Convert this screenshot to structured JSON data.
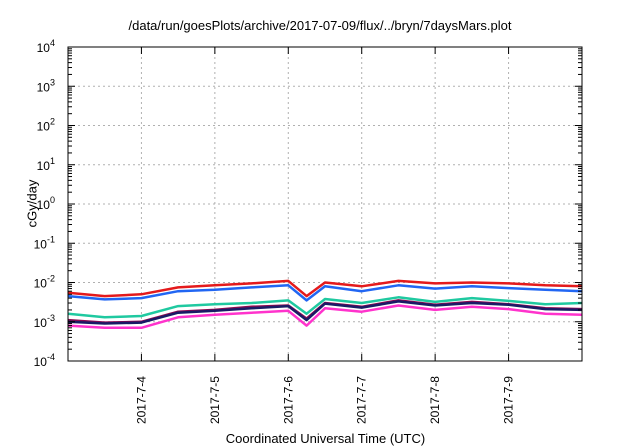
{
  "chart_data": {
    "type": "line",
    "title": "/data/run/goesPlots/archive/2017-07-09/flux/../bryn/7daysMars.plot",
    "xlabel": "Coordinated Universal Time (UTC)",
    "ylabel": "cGy/day",
    "y_scale": "log",
    "ylim": [
      0.0001,
      10000
    ],
    "y_tick_labels": [
      {
        "base": "10",
        "exp": "4"
      },
      {
        "base": "10",
        "exp": "3"
      },
      {
        "base": "10",
        "exp": "2"
      },
      {
        "base": "10",
        "exp": "1"
      },
      {
        "base": "10",
        "exp": "0"
      },
      {
        "base": "10",
        "exp": "-1"
      },
      {
        "base": "10",
        "exp": "-2"
      },
      {
        "base": "10",
        "exp": "-3"
      },
      {
        "base": "10",
        "exp": "-4"
      }
    ],
    "xlim": [
      "2017-07-03",
      "2017-07-10"
    ],
    "x_ticks": [
      "2017-7-4",
      "2017-7-5",
      "2017-7-6",
      "2017-7-7",
      "2017-7-8",
      "2017-7-9"
    ],
    "x_tick_dates": [
      "2017-07-04",
      "2017-07-05",
      "2017-07-06",
      "2017-07-07",
      "2017-07-08",
      "2017-07-09"
    ],
    "grid": true,
    "x": [
      "2017-07-03",
      "2017-07-03T12:00",
      "2017-07-04",
      "2017-07-04T12:00",
      "2017-07-05",
      "2017-07-05T12:00",
      "2017-07-06",
      "2017-07-06T06:00",
      "2017-07-06T12:00",
      "2017-07-07",
      "2017-07-07T12:00",
      "2017-07-08",
      "2017-07-08T12:00",
      "2017-07-09",
      "2017-07-09T12:00",
      "2017-07-10"
    ],
    "series": [
      {
        "color": "#e41a1c",
        "values": [
          0.0055,
          0.0045,
          0.005,
          0.0075,
          0.0085,
          0.0095,
          0.011,
          0.0045,
          0.01,
          0.008,
          0.011,
          0.0095,
          0.01,
          0.0095,
          0.0085,
          0.008
        ]
      },
      {
        "color": "#2166f3",
        "values": [
          0.0045,
          0.0037,
          0.004,
          0.006,
          0.0065,
          0.0075,
          0.0085,
          0.0035,
          0.008,
          0.006,
          0.0085,
          0.007,
          0.008,
          0.0072,
          0.0065,
          0.006
        ]
      },
      {
        "color": "#1fc9a0",
        "values": [
          0.0016,
          0.0013,
          0.0014,
          0.0025,
          0.0028,
          0.003,
          0.0035,
          0.0016,
          0.0038,
          0.003,
          0.0042,
          0.0032,
          0.004,
          0.0034,
          0.0028,
          0.003
        ]
      },
      {
        "color": "#8b0a50",
        "values": [
          0.0011,
          0.00095,
          0.001,
          0.0018,
          0.002,
          0.0024,
          0.0026,
          0.0012,
          0.003,
          0.0024,
          0.0035,
          0.0027,
          0.0032,
          0.0028,
          0.0022,
          0.0021
        ]
      },
      {
        "color": "#1a1a66",
        "values": [
          0.001,
          0.0009,
          0.00095,
          0.0017,
          0.0019,
          0.0022,
          0.0025,
          0.0011,
          0.0029,
          0.0023,
          0.0033,
          0.0026,
          0.003,
          0.0027,
          0.0021,
          0.002
        ]
      },
      {
        "color": "#ff33cc",
        "values": [
          0.0008,
          0.0007,
          0.0007,
          0.0013,
          0.0015,
          0.0017,
          0.0019,
          0.0008,
          0.0022,
          0.0018,
          0.0026,
          0.002,
          0.0024,
          0.0021,
          0.0016,
          0.0015
        ]
      }
    ]
  }
}
